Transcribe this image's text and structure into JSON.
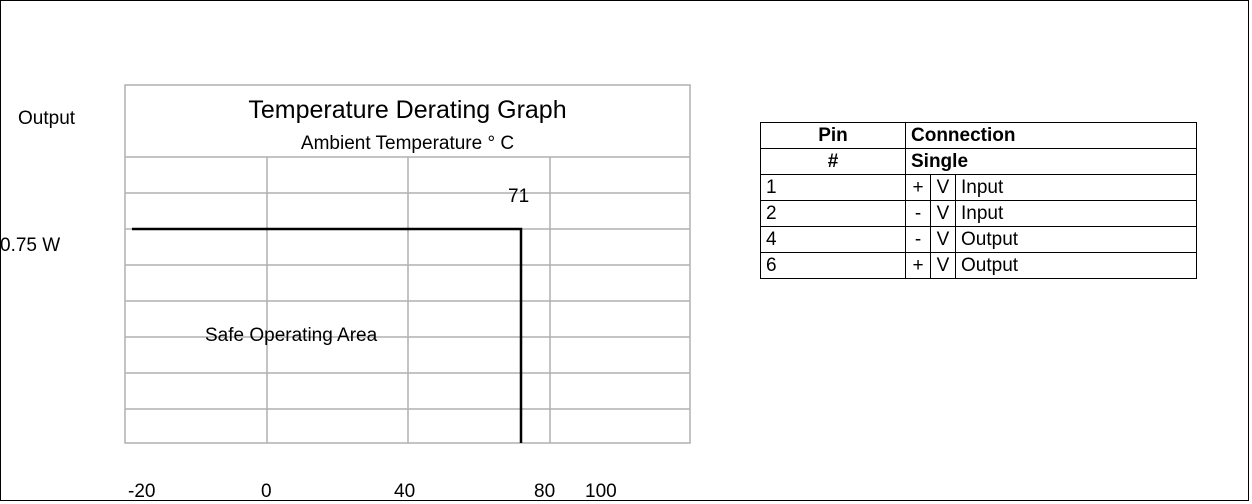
{
  "chart_data": {
    "type": "line",
    "title": "Temperature Derating Graph",
    "subtitle": "Ambient Temperature ° C",
    "ylabel": "Output",
    "x_tick_labels": [
      "-20",
      "0",
      "40",
      "80",
      "100"
    ],
    "y_tick_label": "0.75 W",
    "annotation_knee": "71",
    "region_label": "Safe Operating Area",
    "series": [
      {
        "x": [
          -20,
          71,
          71
        ],
        "y": [
          "0.75 W",
          "0.75 W",
          "0 W"
        ]
      }
    ],
    "grid": true
  },
  "table": {
    "header1": [
      "Pin",
      "Connection"
    ],
    "header2": [
      "#",
      "Single"
    ],
    "rows": [
      {
        "pin": "1",
        "sign": "+",
        "unit": "V",
        "name": "Input"
      },
      {
        "pin": "2",
        "sign": "-",
        "unit": "V",
        "name": "Input"
      },
      {
        "pin": "4",
        "sign": "-",
        "unit": "V",
        "name": "Output"
      },
      {
        "pin": "6",
        "sign": "+",
        "unit": "V",
        "name": "Output"
      }
    ]
  },
  "colors": {
    "grid": "#b0b0b0",
    "line": "#000000",
    "border": "#000000"
  }
}
